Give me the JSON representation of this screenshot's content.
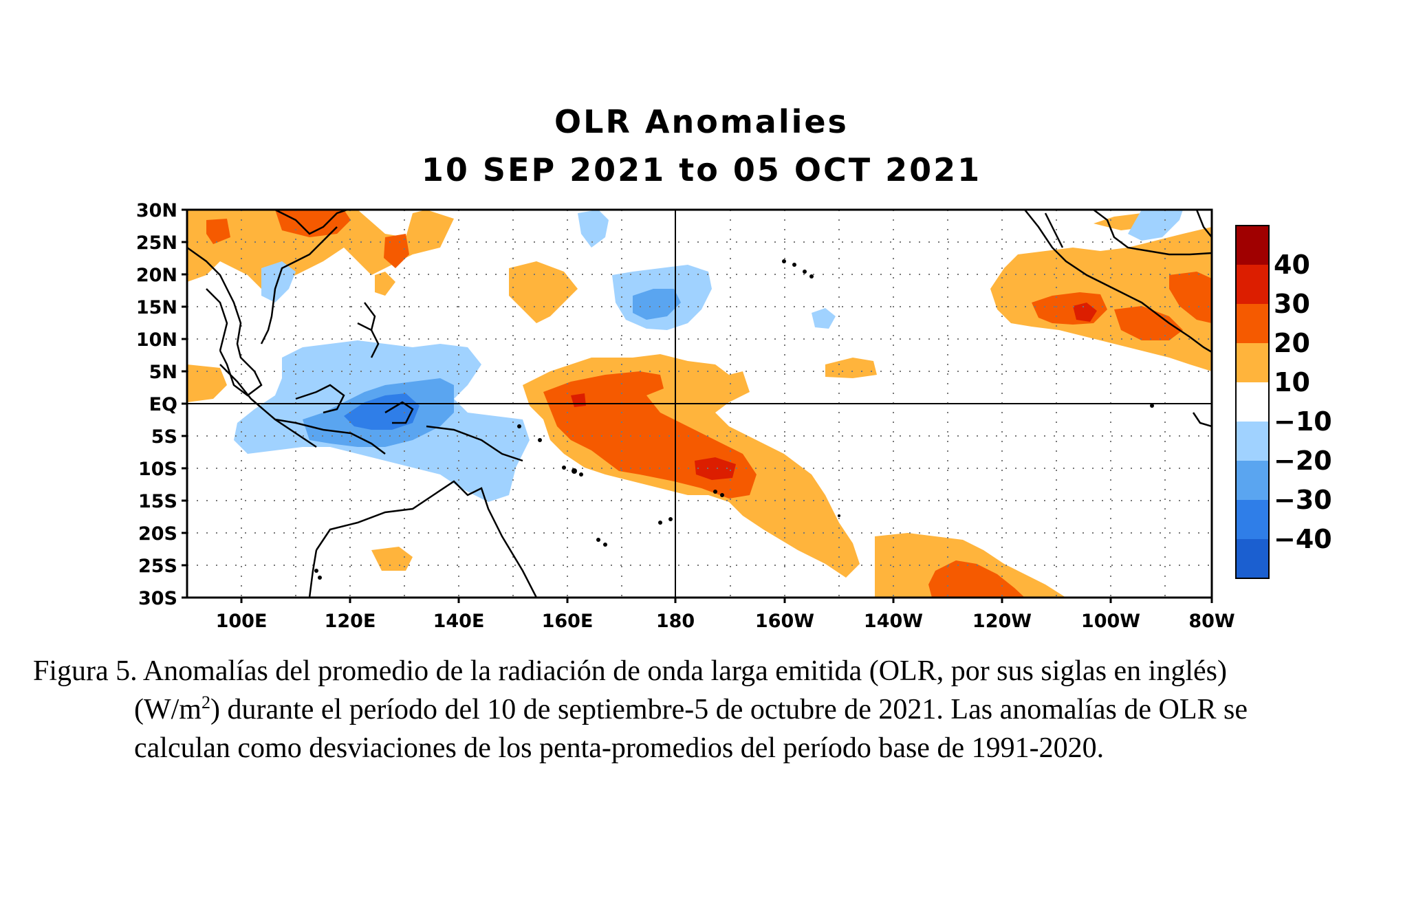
{
  "title": "OLR Anomalies",
  "subtitle": "10 SEP 2021 to 05 OCT 2021",
  "map": {
    "lat_labels": [
      "30N",
      "25N",
      "20N",
      "15N",
      "10N",
      "5N",
      "EQ",
      "5S",
      "10S",
      "15S",
      "20S",
      "25S",
      "30S"
    ],
    "lon_labels": [
      "100E",
      "120E",
      "140E",
      "160E",
      "180",
      "160W",
      "140W",
      "120W",
      "100W",
      "80W"
    ]
  },
  "colorbar": {
    "labels": [
      "40",
      "30",
      "20",
      "10",
      "−10",
      "−20",
      "−30",
      "−40"
    ],
    "colors": [
      "#a00000",
      "#dc1e00",
      "#f55a00",
      "#ffb43c",
      "#ffffff",
      "#a0d2ff",
      "#5aa5f0",
      "#2f7ee8",
      "#1b5fd0"
    ]
  },
  "caption": {
    "line1": "Figura 5. Anomalías del promedio de la radiación de onda larga emitida (OLR, por sus siglas en inglés)",
    "line2_pre": "(W/m",
    "line2_sup": "2",
    "line2_post": ") durante el período del 10 de septiembre-5 de octubre de 2021.  Las anomalías de OLR se",
    "line3": "calculan como desviaciones de los penta-promedios del período base de 1991-2020."
  }
}
